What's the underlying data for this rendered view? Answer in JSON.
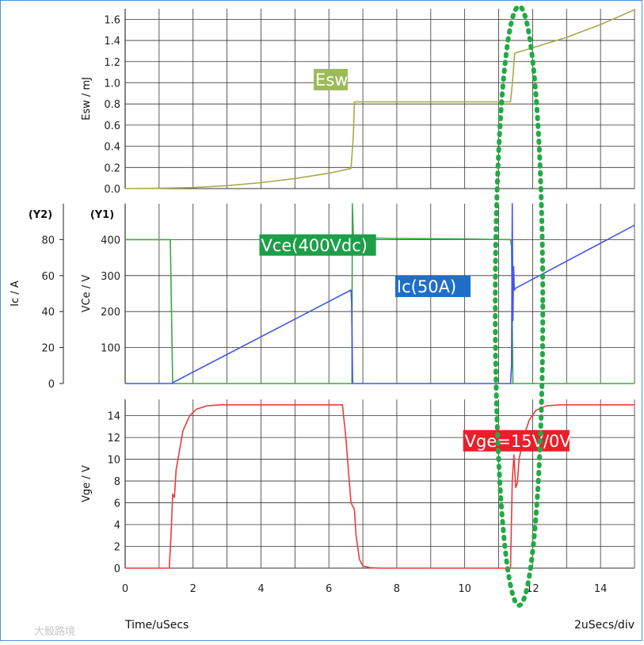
{
  "chart_data": [
    {
      "type": "line",
      "ylabel": "Esw / mJ",
      "xlim": [
        0,
        15
      ],
      "ylim": [
        0,
        1.7
      ],
      "yticks": [
        0.0,
        0.2,
        0.4,
        0.6,
        0.8,
        1.0,
        1.2,
        1.4,
        1.6
      ],
      "ytick_labels": [
        "0.0",
        "0.2",
        "0.4",
        "0.6",
        "0.8",
        "1.0",
        "1.2",
        "1.4",
        "1.6"
      ],
      "grid": true,
      "series": [
        {
          "name": "Esw",
          "color": "#a8a84e",
          "x": [
            0,
            1,
            2,
            3,
            4,
            5,
            6,
            6.65,
            6.72,
            6.75,
            8,
            10,
            11.35,
            11.42,
            11.47,
            12,
            13,
            14,
            15
          ],
          "y": [
            0.0,
            0.003,
            0.01,
            0.028,
            0.056,
            0.095,
            0.145,
            0.19,
            0.5,
            0.82,
            0.82,
            0.82,
            0.82,
            1.05,
            1.28,
            1.33,
            1.43,
            1.55,
            1.69
          ]
        }
      ],
      "annotations": [
        {
          "text": "Esw",
          "color": "#9bbb59",
          "x": 5.6,
          "y": 1.03
        }
      ]
    },
    {
      "type": "line",
      "ylabel": "VCe / V",
      "ylabel2": "Ic / A",
      "y1_header": "(Y1)",
      "y2_header": "(Y2)",
      "xlim": [
        0,
        15
      ],
      "ylim": [
        0,
        500
      ],
      "yticks": [
        100,
        200,
        300,
        400
      ],
      "ytick_labels": [
        "100",
        "200",
        "300",
        "400"
      ],
      "ylim2": [
        0,
        100
      ],
      "yticks2": [
        0,
        20,
        40,
        60,
        80
      ],
      "ytick_labels2": [
        "0",
        "20",
        "40",
        "60",
        "80"
      ],
      "grid": true,
      "series": [
        {
          "name": "Vce(400Vdc)",
          "color": "#3aa845",
          "x": [
            0,
            1.3,
            1.33,
            1.4,
            6.6,
            6.68,
            6.69,
            6.72,
            6.75,
            8,
            10,
            11.35,
            11.38,
            11.42,
            11.5,
            15
          ],
          "y": [
            400,
            400,
            400,
            0,
            0,
            0,
            500,
            410,
            405,
            403,
            402,
            400,
            380,
            0,
            0,
            0
          ]
        },
        {
          "name": "Ic(50A)",
          "color": "#4455ee",
          "x": [
            0,
            1.38,
            1.4,
            6.65,
            6.67,
            6.7,
            11.35,
            11.38,
            11.4,
            11.42,
            11.44,
            11.46,
            11.5,
            15
          ],
          "y": [
            0,
            0,
            0.5,
            52,
            45,
            0,
            0,
            10,
            100,
            35,
            65,
            52,
            53,
            88
          ]
        }
      ],
      "annotations": [
        {
          "text": "Vce(400Vdc)",
          "color": "#1e9e4a",
          "x": 4.0,
          "y": 385
        },
        {
          "text": "Ic(50A)",
          "color": "#1f6fc8",
          "x": 8.0,
          "y": 270
        }
      ]
    },
    {
      "type": "line",
      "ylabel": "Vge / V",
      "xlabel": "Time/uSecs",
      "xlabel_right": "2uSecs/div",
      "xlim": [
        0,
        15
      ],
      "xticks": [
        0,
        2,
        4,
        6,
        8,
        10,
        12,
        14
      ],
      "xtick_labels": [
        "0",
        "2",
        "4",
        "6",
        "8",
        "10",
        "12",
        "14"
      ],
      "ylim": [
        0,
        15.5
      ],
      "yticks": [
        0,
        2,
        4,
        6,
        8,
        10,
        12,
        14
      ],
      "ytick_labels": [
        "0",
        "2",
        "4",
        "6",
        "8",
        "10",
        "12",
        "14"
      ],
      "grid": true,
      "series": [
        {
          "name": "Vge=15V/0V",
          "color": "#ee3a3a",
          "x": [
            0,
            1.3,
            1.35,
            1.4,
            1.45,
            1.5,
            1.7,
            1.9,
            2.1,
            2.4,
            2.8,
            3.5,
            6.4,
            6.5,
            6.6,
            6.65,
            6.7,
            6.75,
            6.8,
            6.9,
            7.0,
            7.2,
            7.5,
            10,
            11.35,
            11.4,
            11.45,
            11.5,
            11.55,
            11.6,
            11.75,
            11.9,
            12.1,
            12.4,
            12.8,
            13.5,
            15
          ],
          "y": [
            0,
            0,
            3.0,
            6.8,
            6.5,
            9.0,
            12.6,
            14.0,
            14.6,
            14.9,
            15.0,
            15.0,
            15.0,
            12.0,
            8.0,
            6.0,
            5.7,
            5.4,
            3.0,
            0.8,
            0.2,
            0.05,
            0,
            0,
            0,
            8.0,
            10.4,
            7.4,
            7.8,
            10.0,
            12.2,
            13.6,
            14.5,
            14.9,
            15.0,
            15.0,
            15.0
          ]
        }
      ],
      "annotations": [
        {
          "text": "Vge=15V/0V",
          "color": "#e8202a",
          "x": 10.0,
          "y": 11.7
        }
      ]
    }
  ],
  "highlight": {
    "shape": "dotted-ellipse",
    "color": "#22aa44",
    "x_center": 11.6,
    "x_halfwidth": 0.7
  },
  "watermark": "大骰路境",
  "colors": {
    "frame": "#4a90d9",
    "grid": "#333333"
  }
}
